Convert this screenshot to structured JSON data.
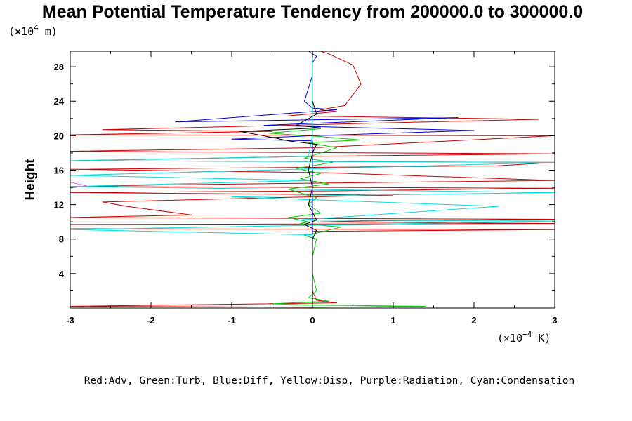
{
  "chart_data": {
    "type": "line",
    "title": "Mean Potential Temperature Tendency from 200000.0 to 300000.0",
    "ylabel": "Height",
    "y_unit_label": "(×10",
    "y_unit_exp": "4",
    "y_unit_tail": " m)",
    "x_unit_label": "(×10",
    "x_unit_exp": "−4",
    "x_unit_tail": " K)",
    "caption": "Red:Adv, Green:Turb, Blue:Diff, Yellow:Disp, Purple:Radiation, Cyan:Condensation",
    "xlim": [
      -3,
      3
    ],
    "ylim": [
      0,
      29.8
    ],
    "x_ticks": [
      -3,
      -2,
      -1,
      0,
      1,
      2,
      3
    ],
    "x_tick_labels": [
      "-3",
      "-2",
      "-1",
      "0",
      "1",
      "2",
      "3"
    ],
    "y_ticks": [
      4,
      8,
      12,
      16,
      20,
      24,
      28
    ],
    "y_tick_labels": [
      "4",
      "8",
      "12",
      "16",
      "20",
      "24",
      "28"
    ],
    "grid": false,
    "series": [
      {
        "color": "#cc0000",
        "points": [
          [
            0,
            0.1
          ],
          [
            -1.2,
            0.15
          ],
          [
            -3,
            0.2
          ],
          [
            0.3,
            0.6
          ],
          [
            0.05,
            0.9
          ],
          [
            0,
            2
          ],
          [
            0,
            4
          ],
          [
            0,
            8
          ],
          [
            0,
            8.9
          ],
          [
            3,
            9.1
          ],
          [
            -3,
            9.2
          ],
          [
            -3,
            9.7
          ],
          [
            3,
            9.8
          ],
          [
            0.1,
            10
          ],
          [
            0.6,
            10.1
          ],
          [
            3,
            10.3
          ],
          [
            -3,
            10.5
          ],
          [
            -1.5,
            10.8
          ],
          [
            -2.3,
            11.8
          ],
          [
            -2.6,
            12.3
          ],
          [
            -0.5,
            12.8
          ],
          [
            1.0,
            13.1
          ],
          [
            -3,
            13.4
          ],
          [
            0.3,
            13.6
          ],
          [
            3,
            13.9
          ],
          [
            -3,
            14.1
          ],
          [
            -1.8,
            14.3
          ],
          [
            3,
            14.8
          ],
          [
            0.2,
            15.7
          ],
          [
            -3,
            16.1
          ],
          [
            2.3,
            16.5
          ],
          [
            3,
            16.9
          ],
          [
            -3,
            17.1
          ],
          [
            0,
            17.6
          ],
          [
            3,
            17.9
          ],
          [
            -3,
            18.2
          ],
          [
            0,
            18.6
          ],
          [
            3,
            20.0
          ],
          [
            -3,
            20.1
          ],
          [
            -0.5,
            20.5
          ],
          [
            -2.6,
            20.7
          ],
          [
            2.8,
            21.9
          ],
          [
            -0.3,
            22.3
          ],
          [
            0.3,
            22.8
          ],
          [
            0.1,
            23.0
          ],
          [
            0.4,
            23.5
          ],
          [
            0.6,
            26.0
          ],
          [
            0.5,
            28.2
          ],
          [
            0.2,
            29.5
          ],
          [
            0.1,
            29.8
          ]
        ]
      },
      {
        "color": "#00cc00",
        "points": [
          [
            0,
            0.1
          ],
          [
            1.4,
            0.2
          ],
          [
            0,
            0.35
          ],
          [
            -0.5,
            0.5
          ],
          [
            0.2,
            0.8
          ],
          [
            -0.05,
            1.2
          ],
          [
            0.05,
            2
          ],
          [
            0,
            4
          ],
          [
            0,
            6
          ],
          [
            0.05,
            8
          ],
          [
            -0.1,
            8.4
          ],
          [
            0.1,
            8.8
          ],
          [
            0.35,
            9.4
          ],
          [
            -0.15,
            9.8
          ],
          [
            -0.05,
            10
          ],
          [
            -0.3,
            10.5
          ],
          [
            0.1,
            11
          ],
          [
            -0.05,
            12
          ],
          [
            0.05,
            12.8
          ],
          [
            -0.3,
            13.8
          ],
          [
            0.2,
            14.4
          ],
          [
            -0.15,
            15
          ],
          [
            0.1,
            15.6
          ],
          [
            -0.2,
            16.2
          ],
          [
            0.25,
            16.9
          ],
          [
            -0.1,
            17.4
          ],
          [
            0.3,
            18.6
          ],
          [
            -0.05,
            19.2
          ],
          [
            0.6,
            19.5
          ],
          [
            0.1,
            19.9
          ],
          [
            -0.55,
            20.3
          ],
          [
            0.1,
            20.8
          ],
          [
            0,
            21
          ],
          [
            0,
            29.8
          ]
        ]
      },
      {
        "color": "#0000dd",
        "points": [
          [
            0,
            0.1
          ],
          [
            0,
            1
          ],
          [
            0,
            8
          ],
          [
            0,
            19.4
          ],
          [
            -1,
            19.6
          ],
          [
            0,
            20.0
          ],
          [
            2.0,
            20.6
          ],
          [
            -0.6,
            21.2
          ],
          [
            1.8,
            22.1
          ],
          [
            -1.7,
            21.6
          ],
          [
            0,
            22.8
          ],
          [
            0.3,
            23.0
          ],
          [
            0,
            23.2
          ],
          [
            -0.1,
            24
          ],
          [
            0,
            27
          ],
          [
            0,
            28.5
          ],
          [
            0.05,
            29.2
          ],
          [
            -0.05,
            29.8
          ]
        ]
      },
      {
        "color": "#00dddd",
        "points": [
          [
            0,
            0.1
          ],
          [
            0,
            2
          ],
          [
            0,
            8.5
          ],
          [
            -3,
            9.1
          ],
          [
            3,
            10.1
          ],
          [
            -0.2,
            10.2
          ],
          [
            2.3,
            11.8
          ],
          [
            -1.0,
            12.9
          ],
          [
            3,
            13.4
          ],
          [
            -3,
            14.1
          ],
          [
            0,
            14.8
          ],
          [
            -3,
            15.4
          ],
          [
            3,
            16.9
          ],
          [
            -3,
            17.1
          ],
          [
            -0.05,
            17.6
          ],
          [
            0,
            20
          ],
          [
            0,
            24
          ],
          [
            0,
            29.8
          ]
        ]
      },
      {
        "color": "#dd66dd",
        "points": [
          [
            -3,
            14.6
          ],
          [
            -2.8,
            14.2
          ],
          [
            -3,
            13.9
          ]
        ]
      },
      {
        "color": "#000000",
        "points": [
          [
            0,
            0.1
          ],
          [
            0,
            8
          ],
          [
            0.05,
            9
          ],
          [
            -0.1,
            9.7
          ],
          [
            0.05,
            10.2
          ],
          [
            -0.05,
            12
          ],
          [
            0,
            14
          ],
          [
            -0.05,
            16
          ],
          [
            0,
            18
          ],
          [
            0.05,
            19
          ],
          [
            -0.3,
            19.4
          ],
          [
            -0.5,
            19.8
          ],
          [
            -0.9,
            20.5
          ],
          [
            0.1,
            20.9
          ],
          [
            -0.2,
            21.2
          ],
          [
            0.05,
            22.5
          ],
          [
            0,
            24
          ]
        ]
      }
    ]
  }
}
